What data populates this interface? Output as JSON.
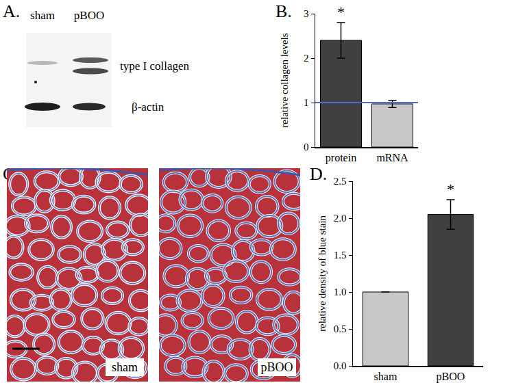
{
  "chart_data": [
    {
      "type": "bar",
      "ylabel": "relative collagen levels",
      "categories": [
        "protein",
        "mRNA"
      ],
      "values": [
        2.4,
        0.97
      ],
      "errors": [
        0.4,
        0.08
      ],
      "colors": [
        "#404040",
        "#c8c8c8"
      ],
      "ylim": [
        0,
        3
      ],
      "yticks": [
        0,
        1,
        2,
        3
      ],
      "reference_line": {
        "value": 1,
        "color": "#4a6fc4"
      },
      "annotations": [
        {
          "text": "*",
          "category": "protein"
        }
      ]
    },
    {
      "type": "bar",
      "ylabel": "relative density of blue stain",
      "categories": [
        "sham",
        "pBOO"
      ],
      "values": [
        1.0,
        2.05
      ],
      "errors": [
        0,
        0.2
      ],
      "colors": [
        "#c8c8c8",
        "#404040"
      ],
      "ylim": [
        0,
        2.5
      ],
      "yticks": [
        {
          "value": 0,
          "label": "0.0"
        },
        0.5,
        {
          "value": 1,
          "label": "1.0"
        },
        1.5,
        {
          "value": 2,
          "label": "2.0"
        },
        2.5
      ],
      "annotations": [
        {
          "text": "*",
          "category": "pBOO"
        }
      ]
    }
  ],
  "panels": {
    "A": {
      "label": "A.",
      "lanes": [
        "sham",
        "pBOO"
      ],
      "bands": [
        "type I collagen",
        "β-actin"
      ]
    },
    "B": {
      "label": "B."
    },
    "C": {
      "label": "C.",
      "images": [
        "sham",
        "pBOO"
      ]
    },
    "D": {
      "label": "D."
    }
  }
}
